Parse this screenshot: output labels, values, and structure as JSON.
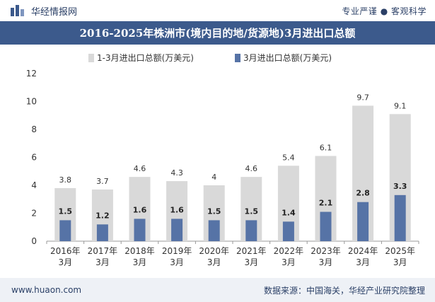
{
  "header": {
    "brand_name": "华经情报网",
    "tagline": "专业严谨 ● 客观科学",
    "logo_icon": "bar-logo-icon"
  },
  "footer": {
    "url": "www.huaon.com",
    "source": "数据来源：中国海关，华经产业研究院整理"
  },
  "colors": {
    "title_bg": "#3c5a8c",
    "series_total": "#d9d9d9",
    "series_march": "#5673a6",
    "footer_bg": "#eef1f6"
  },
  "chart_data": {
    "type": "bar",
    "title": "2016-2025年株洲市(境内目的地/货源地)3月进出口总额",
    "categories": [
      "2016年3月",
      "2017年3月",
      "2018年3月",
      "2019年3月",
      "2020年3月",
      "2021年3月",
      "2022年3月",
      "2023年3月",
      "2024年3月",
      "2025年3月"
    ],
    "categories_lines": [
      [
        "2016年",
        "3月"
      ],
      [
        "2017年",
        "3月"
      ],
      [
        "2018年",
        "3月"
      ],
      [
        "2019年",
        "3月"
      ],
      [
        "2020年",
        "3月"
      ],
      [
        "2021年",
        "3月"
      ],
      [
        "2022年",
        "3月"
      ],
      [
        "2023年",
        "3月"
      ],
      [
        "2024年",
        "3月"
      ],
      [
        "2025年",
        "3月"
      ]
    ],
    "series": [
      {
        "name": "1-3月进出口总额(万美元)",
        "values": [
          3.8,
          3.7,
          4.6,
          4.3,
          4,
          4.6,
          5.4,
          6.1,
          9.7,
          9.1
        ],
        "color": "#d9d9d9"
      },
      {
        "name": "3月进出口总额(万美元)",
        "values": [
          1.5,
          1.2,
          1.6,
          1.6,
          1.5,
          1.5,
          1.4,
          2.1,
          2.8,
          3.3
        ],
        "color": "#5673a6"
      }
    ],
    "ylim": [
      0,
      12
    ],
    "yticks": [
      0,
      2,
      4,
      6,
      8,
      10,
      12
    ],
    "xlabel": "",
    "ylabel": "",
    "grid": false,
    "legend": "top-center",
    "overlay": true
  }
}
